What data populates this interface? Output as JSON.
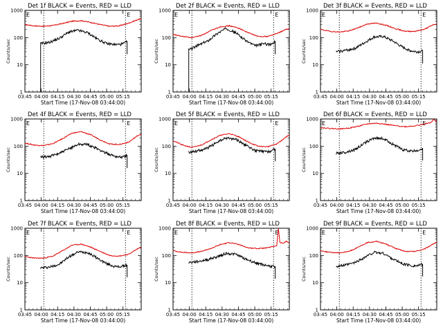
{
  "chart_data": {
    "type": "line",
    "layout": "3x3 grid of log-scale line plots",
    "ylim": [
      1,
      1000
    ],
    "yscale": "log",
    "yticks": [
      "1",
      "10",
      "100",
      "1000"
    ],
    "xticks": [
      "03:45",
      "04:00",
      "04:15",
      "04:30",
      "04:45",
      "05:00",
      "05:15"
    ],
    "xlabel": "Start Time (17-Nov-08 03:44:00)",
    "ylabel": "Counts/sec",
    "time_unit": "minutes from 03:45",
    "xlim": [
      0,
      37
    ],
    "colors": {
      "events": "#000000",
      "lld": "#dd0000"
    },
    "flag_marks": [
      "E",
      "E"
    ],
    "panels": [
      {
        "title": "Det 1f BLACK = Events, RED = LLD",
        "vlines": [
          6,
          32
        ],
        "events": {
          "x": [
            5,
            6,
            8,
            11,
            14,
            17,
            20,
            23,
            26,
            29,
            31,
            32.5
          ],
          "y": [
            60,
            62,
            68,
            95,
            160,
            185,
            150,
            90,
            60,
            55,
            58,
            70
          ]
        },
        "events_start_drop": 5,
        "lld": {
          "x": [
            0,
            3,
            6,
            9,
            12,
            15,
            18,
            21,
            24,
            27,
            30,
            33,
            36,
            37
          ],
          "y": [
            300,
            270,
            260,
            280,
            330,
            400,
            420,
            360,
            300,
            260,
            270,
            340,
            460,
            480
          ]
        }
      },
      {
        "title": "Det 2f BLACK = Events, RED = LLD",
        "vlines": [
          6,
          32
        ],
        "events": {
          "x": [
            5,
            6,
            8,
            11,
            14,
            17,
            20,
            23,
            26,
            29,
            31,
            32.5
          ],
          "y": [
            35,
            40,
            52,
            75,
            140,
            220,
            150,
            80,
            50,
            60,
            55,
            70
          ]
        },
        "events_start_drop": 5,
        "lld": {
          "x": [
            0,
            3,
            6,
            9,
            12,
            15,
            18,
            21,
            24,
            27,
            30,
            33,
            36,
            37
          ],
          "y": [
            130,
            110,
            100,
            120,
            180,
            250,
            270,
            220,
            150,
            110,
            110,
            140,
            200,
            210
          ]
        }
      },
      {
        "title": "Det 3f BLACK = Events, RED = LLD",
        "vlines": [
          6,
          32
        ],
        "events": {
          "x": [
            5,
            8,
            11,
            14,
            17,
            20,
            23,
            26,
            29,
            31,
            32.5
          ],
          "y": [
            30,
            34,
            40,
            65,
            105,
            110,
            75,
            45,
            32,
            30,
            32
          ]
        },
        "lld": {
          "x": [
            0,
            3,
            6,
            9,
            12,
            15,
            18,
            21,
            24,
            27,
            30,
            33,
            36,
            37
          ],
          "y": [
            200,
            170,
            160,
            175,
            230,
            320,
            340,
            280,
            210,
            170,
            170,
            200,
            300,
            310
          ]
        }
      },
      {
        "title": "Det 4f BLACK = Events, RED = LLD",
        "vlines": [
          6,
          32
        ],
        "events": {
          "x": [
            5,
            8,
            11,
            14,
            17,
            20,
            23,
            26,
            29,
            31,
            32.5
          ],
          "y": [
            40,
            42,
            55,
            80,
            120,
            115,
            80,
            55,
            42,
            40,
            45
          ]
        },
        "lld": {
          "x": [
            0,
            3,
            6,
            9,
            12,
            15,
            18,
            21,
            24,
            27,
            30,
            33,
            36,
            37
          ],
          "y": [
            130,
            110,
            105,
            125,
            190,
            300,
            340,
            260,
            170,
            120,
            115,
            140,
            250,
            280
          ]
        }
      },
      {
        "title": "Det 5f BLACK = Events, RED = LLD",
        "vlines": [
          6,
          32
        ],
        "events": {
          "x": [
            5,
            8,
            11,
            14,
            17,
            20,
            23,
            26,
            29,
            31,
            32.5
          ],
          "y": [
            60,
            68,
            85,
            140,
            200,
            180,
            110,
            70,
            62,
            65,
            80
          ]
        },
        "lld": {
          "x": [
            0,
            3,
            6,
            9,
            12,
            15,
            18,
            21,
            24,
            27,
            30,
            33,
            36,
            37
          ],
          "y": [
            160,
            110,
            90,
            110,
            170,
            250,
            290,
            220,
            140,
            100,
            95,
            120,
            220,
            260
          ]
        }
      },
      {
        "title": "Det 6f BLACK = Events, RED = LLD",
        "vlines": [
          6,
          32
        ],
        "events": {
          "x": [
            5,
            8,
            11,
            14,
            17,
            20,
            23,
            26,
            29,
            31,
            32.5
          ],
          "y": [
            55,
            60,
            75,
            130,
            200,
            190,
            120,
            75,
            65,
            70,
            85
          ]
        },
        "lld": {
          "x": [
            0,
            3,
            6,
            9,
            12,
            15,
            18,
            21,
            24,
            27,
            30,
            33,
            34,
            35,
            36,
            37
          ],
          "y": [
            480,
            450,
            430,
            460,
            540,
            660,
            700,
            630,
            560,
            520,
            560,
            640,
            700,
            720,
            950,
            800
          ]
        }
      },
      {
        "title": "Det 7f BLACK = Events, RED = LLD",
        "vlines": [
          6,
          32
        ],
        "events": {
          "x": [
            5,
            8,
            11,
            14,
            17,
            20,
            23,
            26,
            29,
            31,
            32.5
          ],
          "y": [
            35,
            38,
            48,
            90,
            135,
            130,
            80,
            50,
            38,
            40,
            45
          ]
        },
        "lld": {
          "x": [
            0,
            3,
            6,
            9,
            12,
            15,
            18,
            21,
            24,
            27,
            30,
            33,
            36,
            37
          ],
          "y": [
            90,
            80,
            80,
            95,
            150,
            240,
            260,
            200,
            140,
            100,
            95,
            110,
            180,
            200
          ]
        }
      },
      {
        "title": "Det 8f BLACK = Events, RED = LLD",
        "vlines": [
          6,
          32
        ],
        "events": {
          "x": [
            5,
            8,
            11,
            14,
            17,
            20,
            23,
            26,
            29,
            31,
            32.5
          ],
          "y": [
            55,
            60,
            70,
            90,
            120,
            110,
            75,
            55,
            45,
            40,
            40
          ]
        },
        "lld": {
          "x": [
            0,
            3,
            6,
            9,
            12,
            15,
            18,
            21,
            24,
            27,
            30,
            33,
            33.5,
            34,
            35,
            36,
            37
          ],
          "y": [
            150,
            130,
            125,
            140,
            180,
            250,
            300,
            250,
            190,
            180,
            190,
            230,
            1000,
            300,
            280,
            330,
            300
          ]
        }
      },
      {
        "title": "Det 9f BLACK = Events, RED = LLD",
        "vlines": [
          6,
          32
        ],
        "events": {
          "x": [
            5,
            8,
            11,
            14,
            17,
            20,
            23,
            26,
            29,
            31,
            32.5
          ],
          "y": [
            40,
            44,
            55,
            85,
            130,
            120,
            75,
            50,
            42,
            42,
            48
          ]
        },
        "lld": {
          "x": [
            0,
            3,
            6,
            9,
            12,
            15,
            18,
            21,
            24,
            27,
            30,
            33,
            36,
            37
          ],
          "y": [
            150,
            130,
            125,
            140,
            200,
            300,
            330,
            260,
            180,
            140,
            140,
            170,
            270,
            300
          ]
        }
      }
    ]
  }
}
